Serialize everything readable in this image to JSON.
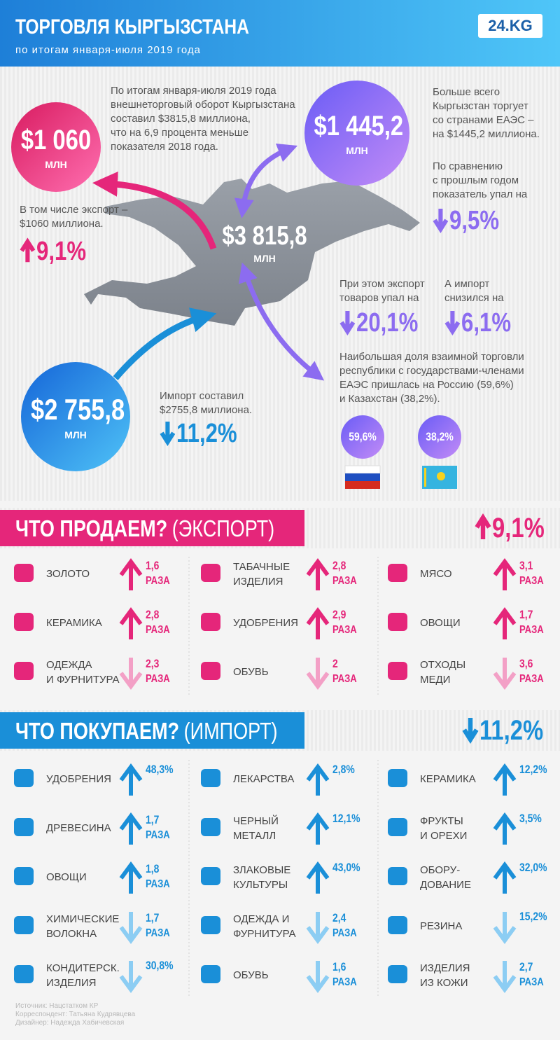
{
  "header": {
    "title": "ТОРГОВЛЯ КЫРГЫЗСТАНА",
    "subtitle": "по итогам января-июля 2019 года",
    "logo": "24.KG"
  },
  "summary": {
    "intro": [
      "По итогам января-июля 2019 года",
      "внешнеторговый оборот Кыргызстана",
      "составил $3815,8 миллиона,",
      "что на 6,9 процента меньше",
      "показателя 2018 года."
    ],
    "total": {
      "value": "$3 815,8",
      "unit": "МЛН"
    },
    "export": {
      "value": "$1 060",
      "unit": "МЛН",
      "lines": [
        "В том числе экспорт –",
        "$1060 миллиона."
      ],
      "change": "9,1%",
      "direction": "up"
    },
    "import": {
      "value": "$2 755,8",
      "unit": "МЛН",
      "lines": [
        "Импорт составил",
        "$2755,8 миллиона."
      ],
      "change": "11,2%",
      "direction": "down"
    },
    "eaeu": {
      "value": "$1 445,2",
      "unit": "МЛН",
      "lines": [
        "Больше всего",
        "Кыргызстан торгует",
        "со странами ЕАЭС –",
        "на $1445,2 миллиона."
      ],
      "comparison": {
        "lines": [
          "По сравнению",
          "с прошлым годом",
          "показатель упал на"
        ],
        "change": "9,5%",
        "direction": "down"
      }
    },
    "eaeu_export": {
      "lines": [
        "При этом экспорт",
        "товаров упал на"
      ],
      "change": "20,1%",
      "direction": "down"
    },
    "eaeu_import": {
      "lines": [
        "А импорт",
        "снизился на"
      ],
      "change": "6,1%",
      "direction": "down"
    },
    "partners": {
      "lines": [
        "Наибольшая доля взаимной торговли",
        "республики с государствами-членами",
        "ЕАЭС пришлась на Россию (59,6%)",
        "и Казахстан (38,2%)."
      ],
      "shares": [
        "59,6%",
        "38,2%"
      ]
    }
  },
  "export_section": {
    "title": "ЧТО ПРОДАЕМ?",
    "subtitle": "(ЭКСПОРТ)",
    "change": "9,1%",
    "direction": "up",
    "items": [
      {
        "name": [
          "ЗОЛОТО"
        ],
        "value": "1,6",
        "unit": "РАЗА",
        "direction": "up"
      },
      {
        "name": [
          "ТАБАЧНЫЕ",
          "ИЗДЕЛИЯ"
        ],
        "value": "2,8",
        "unit": "РАЗА",
        "direction": "up"
      },
      {
        "name": [
          "МЯСО"
        ],
        "value": "3,1",
        "unit": "РАЗА",
        "direction": "up"
      },
      {
        "name": [
          "КЕРАМИКА"
        ],
        "value": "2,8",
        "unit": "РАЗА",
        "direction": "up"
      },
      {
        "name": [
          "УДОБРЕНИЯ"
        ],
        "value": "2,9",
        "unit": "РАЗА",
        "direction": "up"
      },
      {
        "name": [
          "ОВОЩИ"
        ],
        "value": "1,7",
        "unit": "РАЗА",
        "direction": "up"
      },
      {
        "name": [
          "ОДЕЖДА",
          "И ФУРНИТУРА"
        ],
        "value": "2,3",
        "unit": "РАЗА",
        "direction": "down"
      },
      {
        "name": [
          "ОБУВЬ"
        ],
        "value": "2",
        "unit": "РАЗА",
        "direction": "down"
      },
      {
        "name": [
          "ОТХОДЫ",
          "МЕДИ"
        ],
        "value": "3,6",
        "unit": "РАЗА",
        "direction": "down"
      }
    ]
  },
  "import_section": {
    "title": "ЧТО ПОКУПАЕМ?",
    "subtitle": "(ИМПОРТ)",
    "change": "11,2%",
    "direction": "down",
    "items": [
      {
        "name": [
          "УДОБРЕНИЯ"
        ],
        "value": "48,3%",
        "direction": "up"
      },
      {
        "name": [
          "ЛЕКАРСТВА"
        ],
        "value": "2,8%",
        "direction": "up"
      },
      {
        "name": [
          "КЕРАМИКА"
        ],
        "value": "12,2%",
        "direction": "up"
      },
      {
        "name": [
          "ДРЕВЕСИНА"
        ],
        "value": "1,7",
        "unit": "РАЗА",
        "direction": "up"
      },
      {
        "name": [
          "ЧЕРНЫЙ",
          "МЕТАЛЛ"
        ],
        "value": "12,1%",
        "direction": "up"
      },
      {
        "name": [
          "ФРУКТЫ",
          "И ОРЕХИ"
        ],
        "value": "3,5%",
        "direction": "up"
      },
      {
        "name": [
          "ОВОЩИ"
        ],
        "value": "1,8",
        "unit": "РАЗА",
        "direction": "up"
      },
      {
        "name": [
          "ЗЛАКОВЫЕ",
          "КУЛЬТУРЫ"
        ],
        "value": "43,0%",
        "direction": "up"
      },
      {
        "name": [
          "ОБОРУ-",
          "ДОВАНИЕ"
        ],
        "value": "32,0%",
        "direction": "up"
      },
      {
        "name": [
          "ХИМИЧЕСКИЕ",
          "ВОЛОКНА"
        ],
        "value": "1,7",
        "unit": "РАЗА",
        "direction": "down"
      },
      {
        "name": [
          "ОДЕЖДА И",
          "ФУРНИТУРА"
        ],
        "value": "2,4",
        "unit": "РАЗА",
        "direction": "down"
      },
      {
        "name": [
          "РЕЗИНА"
        ],
        "value": "15,2%",
        "direction": "down"
      },
      {
        "name": [
          "КОНДИТЕРСК.",
          "ИЗДЕЛИЯ"
        ],
        "value": "30,8%",
        "direction": "down"
      },
      {
        "name": [
          "ОБУВЬ"
        ],
        "value": "1,6",
        "unit": "РАЗА",
        "direction": "down"
      },
      {
        "name": [
          "ИЗДЕЛИЯ",
          "ИЗ КОЖИ"
        ],
        "value": "2,7",
        "unit": "РАЗА",
        "direction": "down"
      }
    ]
  },
  "footer": {
    "credits": [
      "Источник: Нацстатком КР",
      "Корреспондент: Татьяна Кудрявцева",
      "Дизайнер: Надежда Хабичевская"
    ]
  }
}
